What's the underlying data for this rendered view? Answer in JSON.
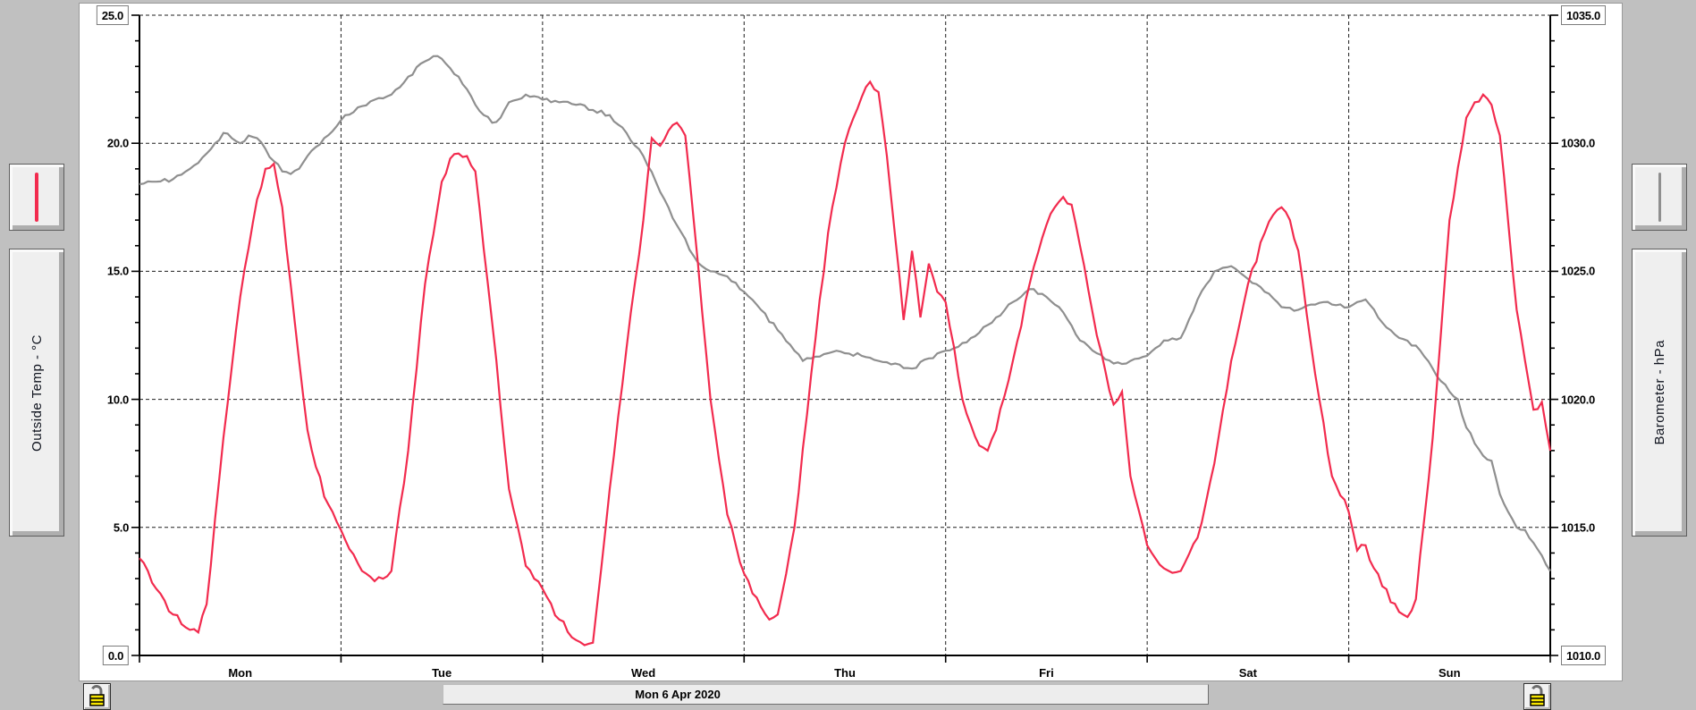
{
  "window": {
    "background_color": "#c0c0c0"
  },
  "left_panel": {
    "legend_button": {
      "series_color": "#f22b4e",
      "swatch": "vertical-line"
    },
    "axis_button_label": "Outside Temp - °C"
  },
  "right_panel": {
    "legend_button": {
      "series_color": "#8f8f8f",
      "swatch": "vertical-line"
    },
    "axis_button_label": "Barometer - hPa"
  },
  "bottom_bar": {
    "date_label": "Mon 6 Apr 2020",
    "left_lock_icon": "open-padlock",
    "right_lock_icon": "open-padlock"
  },
  "chart_data": {
    "type": "line",
    "title": "",
    "x_unit": "hours since Mon 00:00",
    "x_range": [
      0,
      168
    ],
    "day_labels": [
      "Mon",
      "Tue",
      "Wed",
      "Thu",
      "Fri",
      "Sat",
      "Sun"
    ],
    "grid": "dashed, horizontal every 5 units, vertical at day boundaries",
    "left_axis": {
      "label": "Outside Temp - °C",
      "min": 0,
      "max": 25,
      "major_step": 5,
      "minor_step": 1,
      "tick_labels": [
        "25.0",
        "20.0",
        "15.0",
        "10.0",
        "5.0",
        "0.0"
      ]
    },
    "right_axis": {
      "label": "Barometer - hPa",
      "min": 1010,
      "max": 1035,
      "major_step": 5,
      "minor_step": 1,
      "tick_labels": [
        "1035.0",
        "1030.0",
        "1025.0",
        "1020.0",
        "1015.0",
        "1010.0"
      ]
    },
    "series": [
      {
        "name": "Barometer - hPa",
        "axis": "right",
        "color": "#8f8f8f",
        "x": [
          0,
          2,
          4,
          6,
          8,
          9,
          10,
          11,
          12,
          13,
          14,
          16,
          17,
          18,
          19,
          20,
          22,
          24,
          26,
          28,
          30,
          32,
          34,
          35,
          36,
          38,
          40,
          41,
          42,
          43,
          44,
          46,
          48,
          50,
          52,
          54,
          56,
          58,
          60,
          62,
          64,
          66,
          67,
          68,
          69,
          70,
          72,
          74,
          76,
          78,
          79,
          80,
          82,
          83,
          84,
          86,
          88,
          90,
          92,
          94,
          96,
          98,
          100,
          102,
          104,
          106,
          108,
          109,
          110,
          112,
          114,
          116,
          118,
          120,
          121,
          122,
          124,
          126,
          128,
          130,
          132,
          134,
          136,
          138,
          140,
          141,
          142,
          144,
          145,
          146,
          148,
          150,
          152,
          154,
          156,
          157,
          158,
          160,
          161,
          162,
          163,
          164,
          165,
          166,
          167,
          168
        ],
        "values": [
          1028.4,
          1028.5,
          1028.6,
          1029.0,
          1029.6,
          1030.0,
          1030.4,
          1030.2,
          1030.0,
          1030.3,
          1030.2,
          1029.3,
          1028.9,
          1028.8,
          1029.0,
          1029.5,
          1030.2,
          1030.9,
          1031.4,
          1031.7,
          1031.9,
          1032.6,
          1033.2,
          1033.4,
          1033.3,
          1032.6,
          1031.5,
          1031.1,
          1030.8,
          1031.0,
          1031.6,
          1031.9,
          1031.7,
          1031.6,
          1031.5,
          1031.3,
          1031.1,
          1030.4,
          1029.5,
          1028.1,
          1026.8,
          1025.6,
          1025.2,
          1025.0,
          1024.9,
          1024.8,
          1024.2,
          1023.5,
          1022.7,
          1021.9,
          1021.5,
          1021.6,
          1021.8,
          1021.9,
          1021.8,
          1021.7,
          1021.5,
          1021.4,
          1021.2,
          1021.6,
          1021.9,
          1022.2,
          1022.6,
          1023.2,
          1023.8,
          1024.3,
          1024.0,
          1023.7,
          1023.4,
          1022.3,
          1021.8,
          1021.4,
          1021.5,
          1021.7,
          1022.0,
          1022.3,
          1022.4,
          1023.9,
          1025.0,
          1025.2,
          1024.7,
          1024.2,
          1023.6,
          1023.5,
          1023.7,
          1023.8,
          1023.7,
          1023.6,
          1023.8,
          1023.9,
          1023.0,
          1022.4,
          1022.1,
          1021.2,
          1020.3,
          1020.0,
          1018.9,
          1017.8,
          1017.6,
          1016.3,
          1015.6,
          1015.0,
          1014.9,
          1014.4,
          1013.9,
          1013.3
        ]
      },
      {
        "name": "Outside Temp - °C",
        "axis": "left",
        "color": "#f22b4e",
        "x": [
          0,
          2,
          4,
          6,
          7,
          8,
          10,
          12,
          14,
          15,
          16,
          17,
          18,
          20,
          22,
          24,
          26,
          28,
          30,
          32,
          34,
          36,
          37,
          38,
          39,
          40,
          42,
          44,
          46,
          48,
          50,
          52,
          53,
          54,
          56,
          58,
          60,
          61,
          62,
          63,
          64,
          65,
          66,
          68,
          70,
          72,
          74,
          75,
          76,
          78,
          80,
          82,
          84,
          86,
          87,
          88,
          89,
          90,
          91,
          92,
          93,
          94,
          95,
          96,
          98,
          100,
          101,
          102,
          104,
          106,
          108,
          109,
          110,
          111,
          112,
          114,
          116,
          117,
          118,
          120,
          122,
          124,
          126,
          128,
          130,
          132,
          134,
          135,
          136,
          137,
          138,
          140,
          142,
          144,
          145,
          146,
          147,
          148,
          150,
          151,
          152,
          154,
          156,
          158,
          159,
          160,
          161,
          162,
          164,
          165,
          166,
          167,
          168
        ],
        "values": [
          3.8,
          2.6,
          1.6,
          1.0,
          0.9,
          2.0,
          8.5,
          14.0,
          17.8,
          19.0,
          19.2,
          17.5,
          14.5,
          8.8,
          6.2,
          4.9,
          3.6,
          2.9,
          3.3,
          8.0,
          14.5,
          18.5,
          19.4,
          19.6,
          19.5,
          18.9,
          13.0,
          6.5,
          3.5,
          2.6,
          1.4,
          0.6,
          0.4,
          0.5,
          6.5,
          12.0,
          17.0,
          20.2,
          19.9,
          20.5,
          20.8,
          20.3,
          17.0,
          10.0,
          5.5,
          3.2,
          1.9,
          1.4,
          1.6,
          5.0,
          11.0,
          16.5,
          20.0,
          21.8,
          22.4,
          22.0,
          19.5,
          16.3,
          13.1,
          15.8,
          13.2,
          15.3,
          14.2,
          13.8,
          10.0,
          8.2,
          8.0,
          8.8,
          11.5,
          14.5,
          16.8,
          17.5,
          17.9,
          17.6,
          16.0,
          12.5,
          9.8,
          10.3,
          7.0,
          4.3,
          3.4,
          3.3,
          4.6,
          7.5,
          11.5,
          14.5,
          16.5,
          17.2,
          17.5,
          17.0,
          15.8,
          11.0,
          7.0,
          5.6,
          4.1,
          4.3,
          3.4,
          2.7,
          1.7,
          1.5,
          2.2,
          8.5,
          17.0,
          21.0,
          21.6,
          21.9,
          21.5,
          20.3,
          13.5,
          11.5,
          9.6,
          9.9,
          8.0
        ]
      }
    ]
  }
}
